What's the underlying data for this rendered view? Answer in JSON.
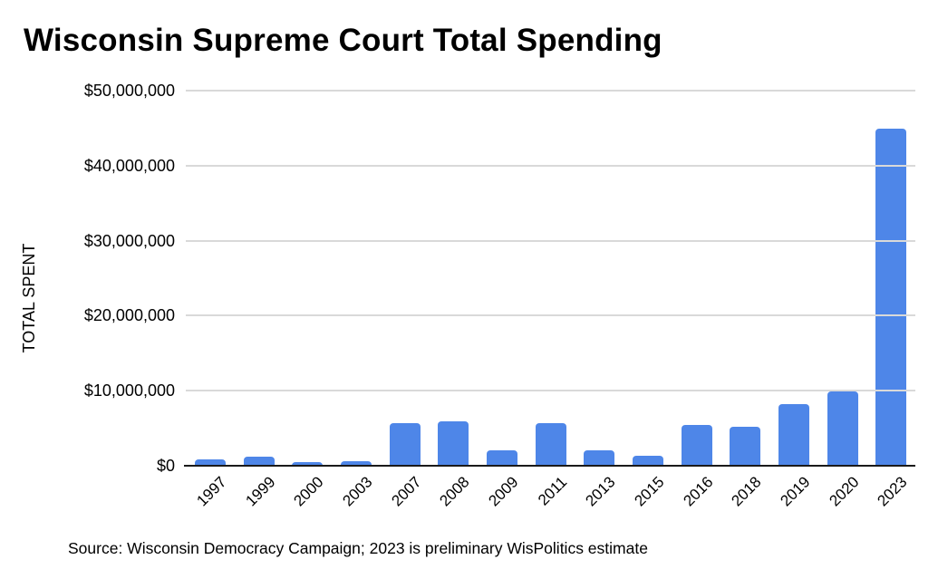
{
  "page": {
    "background_color": "#ffffff"
  },
  "chart_data": {
    "type": "bar",
    "title": "Wisconsin Supreme Court Total Spending",
    "xlabel": "",
    "ylabel": "TOTAL SPENT",
    "categories": [
      "1997",
      "1999",
      "2000",
      "2003",
      "2007",
      "2008",
      "2009",
      "2011",
      "2013",
      "2015",
      "2016",
      "2018",
      "2019",
      "2020",
      "2023"
    ],
    "values": [
      800000,
      1200000,
      450000,
      600000,
      5700000,
      5950000,
      2100000,
      5700000,
      2050000,
      1300000,
      5400000,
      5200000,
      8250000,
      9850000,
      44900000
    ],
    "ylim": [
      0,
      50000000
    ],
    "ytick_values": [
      0,
      10000000,
      20000000,
      30000000,
      40000000,
      50000000
    ],
    "ytick_labels": [
      "$0",
      "$10,000,000",
      "$20,000,000",
      "$30,000,000",
      "$40,000,000",
      "$50,000,000"
    ],
    "grid": true,
    "legend": false,
    "bar_color": "#4e86e8",
    "gridline_color": "#d9d9d9",
    "axis_line_color": "#1a1a1a",
    "source_note": "Source: Wisconsin Democracy Campaign; 2023 is preliminary WisPolitics estimate"
  }
}
